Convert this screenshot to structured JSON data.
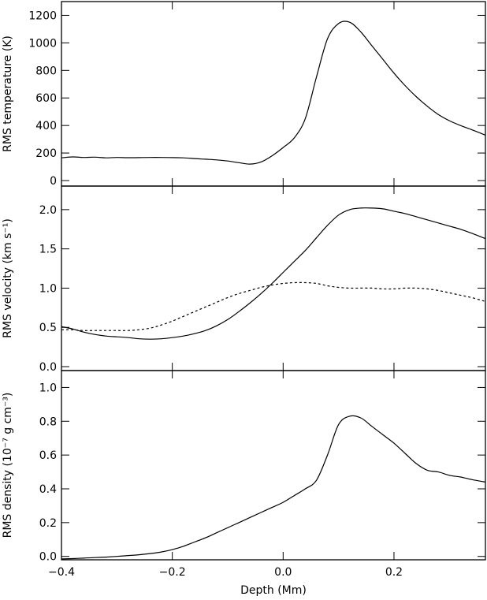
{
  "chart_data": [
    {
      "type": "line",
      "ylabel": "RMS temperature (K)",
      "xlim": [
        -0.4,
        0.365
      ],
      "ylim": [
        -40,
        1300
      ],
      "yticks": [
        "0",
        "200",
        "400",
        "600",
        "800",
        "1000",
        "1200"
      ],
      "ytick_values": [
        0,
        200,
        400,
        600,
        800,
        1000,
        1200
      ],
      "grid": false,
      "series": [
        {
          "style": "solid",
          "x": [
            -0.4,
            -0.38,
            -0.36,
            -0.34,
            -0.32,
            -0.3,
            -0.28,
            -0.26,
            -0.24,
            -0.22,
            -0.2,
            -0.18,
            -0.16,
            -0.14,
            -0.12,
            -0.1,
            -0.08,
            -0.06,
            -0.04,
            -0.02,
            0.0,
            0.02,
            0.04,
            0.06,
            0.08,
            0.1,
            0.12,
            0.14,
            0.16,
            0.18,
            0.2,
            0.22,
            0.24,
            0.26,
            0.28,
            0.3,
            0.32,
            0.34,
            0.365
          ],
          "y": [
            165,
            172,
            168,
            170,
            165,
            168,
            166,
            167,
            168,
            168,
            167,
            165,
            160,
            155,
            150,
            142,
            130,
            120,
            135,
            180,
            240,
            310,
            450,
            750,
            1030,
            1140,
            1150,
            1080,
            980,
            880,
            780,
            690,
            610,
            540,
            480,
            435,
            400,
            370,
            330
          ]
        }
      ]
    },
    {
      "type": "line",
      "ylabel": "RMS velocity (km s⁻¹)",
      "xlim": [
        -0.4,
        0.365
      ],
      "ylim": [
        -0.05,
        2.3
      ],
      "yticks": [
        "0.0",
        "0.5",
        "1.0",
        "1.5",
        "2.0"
      ],
      "ytick_values": [
        0.0,
        0.5,
        1.0,
        1.5,
        2.0
      ],
      "grid": false,
      "series": [
        {
          "style": "solid",
          "x": [
            -0.4,
            -0.38,
            -0.36,
            -0.34,
            -0.32,
            -0.3,
            -0.28,
            -0.26,
            -0.24,
            -0.22,
            -0.2,
            -0.18,
            -0.16,
            -0.14,
            -0.12,
            -0.1,
            -0.08,
            -0.06,
            -0.04,
            -0.02,
            0.0,
            0.02,
            0.04,
            0.06,
            0.08,
            0.1,
            0.12,
            0.14,
            0.16,
            0.18,
            0.2,
            0.22,
            0.24,
            0.26,
            0.28,
            0.3,
            0.32,
            0.34,
            0.365
          ],
          "y": [
            0.51,
            0.48,
            0.44,
            0.41,
            0.39,
            0.38,
            0.37,
            0.355,
            0.35,
            0.355,
            0.37,
            0.39,
            0.42,
            0.46,
            0.52,
            0.6,
            0.7,
            0.81,
            0.93,
            1.06,
            1.2,
            1.34,
            1.48,
            1.64,
            1.8,
            1.93,
            2.0,
            2.02,
            2.02,
            2.01,
            1.98,
            1.95,
            1.91,
            1.87,
            1.83,
            1.79,
            1.75,
            1.7,
            1.63
          ]
        },
        {
          "style": "dotted",
          "x": [
            -0.4,
            -0.38,
            -0.36,
            -0.34,
            -0.32,
            -0.3,
            -0.28,
            -0.26,
            -0.24,
            -0.22,
            -0.2,
            -0.18,
            -0.16,
            -0.14,
            -0.12,
            -0.1,
            -0.08,
            -0.06,
            -0.04,
            -0.02,
            0.0,
            0.02,
            0.04,
            0.06,
            0.08,
            0.1,
            0.12,
            0.14,
            0.16,
            0.18,
            0.2,
            0.22,
            0.24,
            0.26,
            0.28,
            0.3,
            0.32,
            0.34,
            0.365
          ],
          "y": [
            0.47,
            0.47,
            0.46,
            0.46,
            0.46,
            0.46,
            0.46,
            0.47,
            0.49,
            0.53,
            0.58,
            0.64,
            0.7,
            0.76,
            0.82,
            0.88,
            0.93,
            0.97,
            1.01,
            1.04,
            1.06,
            1.07,
            1.07,
            1.06,
            1.03,
            1.01,
            1.0,
            1.0,
            1.0,
            0.99,
            0.99,
            1.0,
            1.0,
            0.99,
            0.97,
            0.94,
            0.91,
            0.88,
            0.83
          ]
        }
      ]
    },
    {
      "type": "line",
      "xlabel": "Depth (Mm)",
      "ylabel": "RMS density (10⁻⁷ g cm⁻³)",
      "xlim": [
        -0.4,
        0.365
      ],
      "ylim": [
        -0.02,
        1.1
      ],
      "xticks": [
        "−0.4",
        "−0.2",
        "0.0",
        "0.2"
      ],
      "xtick_values": [
        -0.4,
        -0.2,
        0.0,
        0.2
      ],
      "yticks": [
        "0.0",
        "0.2",
        "0.4",
        "0.6",
        "0.8",
        "1.0"
      ],
      "ytick_values": [
        0.0,
        0.2,
        0.4,
        0.6,
        0.8,
        1.0
      ],
      "grid": false,
      "series": [
        {
          "style": "solid",
          "x": [
            -0.4,
            -0.38,
            -0.36,
            -0.34,
            -0.32,
            -0.3,
            -0.28,
            -0.26,
            -0.24,
            -0.22,
            -0.2,
            -0.18,
            -0.16,
            -0.14,
            -0.12,
            -0.1,
            -0.08,
            -0.06,
            -0.04,
            -0.02,
            0.0,
            0.02,
            0.04,
            0.06,
            0.08,
            0.1,
            0.12,
            0.14,
            0.16,
            0.18,
            0.2,
            0.22,
            0.24,
            0.26,
            0.28,
            0.3,
            0.32,
            0.34,
            0.365
          ],
          "y": [
            -0.015,
            -0.013,
            -0.01,
            -0.007,
            -0.004,
            0.0,
            0.005,
            0.01,
            0.017,
            0.026,
            0.04,
            0.06,
            0.085,
            0.11,
            0.14,
            0.17,
            0.2,
            0.23,
            0.26,
            0.29,
            0.32,
            0.36,
            0.4,
            0.45,
            0.6,
            0.78,
            0.83,
            0.82,
            0.77,
            0.72,
            0.67,
            0.61,
            0.55,
            0.51,
            0.5,
            0.48,
            0.47,
            0.455,
            0.44
          ]
        }
      ]
    }
  ]
}
